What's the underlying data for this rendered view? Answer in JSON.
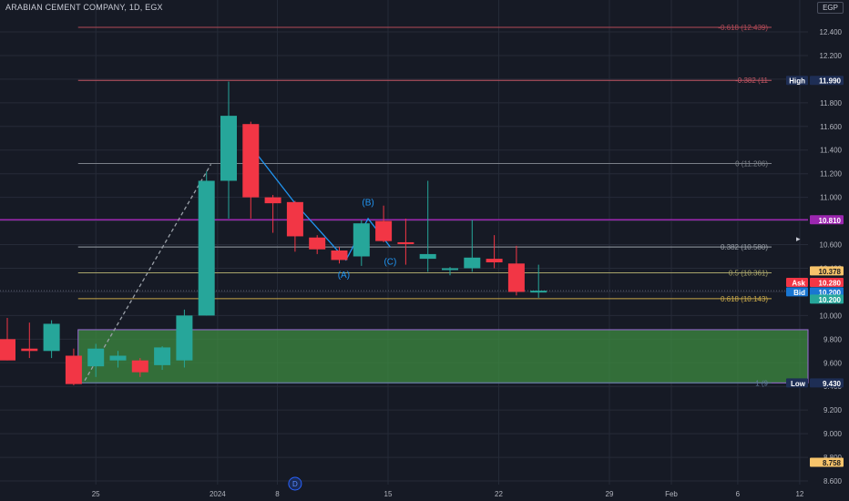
{
  "title": "ARABIAN CEMENT COMPANY, 1D, EGX",
  "currency": "EGP",
  "colors": {
    "background": "#161a25",
    "up": "#26a69a",
    "down": "#f23645",
    "axis_text": "#b2b5be",
    "grid": "#262b38",
    "zone": "#4caf50",
    "line_purple": "#9c27b0",
    "wave": "#2196f3"
  },
  "chart_data": {
    "type": "candlestick",
    "y_axis": {
      "ticks": [
        "12.400",
        "12.200",
        "12.000",
        "11.800",
        "11.600",
        "11.400",
        "11.200",
        "11.000",
        "10.800",
        "10.600",
        "10.400",
        "10.200",
        "10.000",
        "9.800",
        "9.600",
        "9.400",
        "9.200",
        "9.000",
        "8.800",
        "8.600"
      ],
      "range": [
        8.52,
        12.58
      ]
    },
    "x_axis": {
      "ticks": [
        "25",
        "2024",
        "8",
        "15",
        "22",
        "29",
        "Feb",
        "6",
        "12"
      ]
    },
    "candles": [
      {
        "o": 9.8,
        "h": 9.98,
        "l": 9.62,
        "c": 9.62
      },
      {
        "o": 9.72,
        "h": 9.94,
        "l": 9.64,
        "c": 9.7
      },
      {
        "o": 9.7,
        "h": 9.96,
        "l": 9.64,
        "c": 9.93
      },
      {
        "o": 9.66,
        "h": 9.72,
        "l": 9.41,
        "c": 9.42
      },
      {
        "o": 9.57,
        "h": 9.76,
        "l": 9.48,
        "c": 9.72
      },
      {
        "o": 9.62,
        "h": 9.7,
        "l": 9.56,
        "c": 9.66
      },
      {
        "o": 9.62,
        "h": 9.64,
        "l": 9.48,
        "c": 9.52
      },
      {
        "o": 9.58,
        "h": 9.74,
        "l": 9.54,
        "c": 9.73
      },
      {
        "o": 9.62,
        "h": 10.05,
        "l": 9.56,
        "c": 10.0
      },
      {
        "o": 10.0,
        "h": 11.22,
        "l": 10.0,
        "c": 11.14
      },
      {
        "o": 11.14,
        "h": 11.98,
        "l": 10.82,
        "c": 11.69
      },
      {
        "o": 11.62,
        "h": 11.64,
        "l": 10.82,
        "c": 11.0
      },
      {
        "o": 11.0,
        "h": 11.02,
        "l": 10.7,
        "c": 10.95
      },
      {
        "o": 10.96,
        "h": 10.97,
        "l": 10.54,
        "c": 10.67
      },
      {
        "o": 10.66,
        "h": 10.68,
        "l": 10.52,
        "c": 10.56
      },
      {
        "o": 10.55,
        "h": 10.58,
        "l": 10.44,
        "c": 10.47
      },
      {
        "o": 10.5,
        "h": 10.81,
        "l": 10.42,
        "c": 10.78
      },
      {
        "o": 10.8,
        "h": 10.93,
        "l": 10.62,
        "c": 10.63
      },
      {
        "o": 10.62,
        "h": 10.82,
        "l": 10.43,
        "c": 10.61
      },
      {
        "o": 10.48,
        "h": 11.14,
        "l": 10.37,
        "c": 10.52
      },
      {
        "o": 10.4,
        "h": 10.41,
        "l": 10.34,
        "c": 10.4
      },
      {
        "o": 10.4,
        "h": 10.81,
        "l": 10.37,
        "c": 10.49
      },
      {
        "o": 10.48,
        "h": 10.68,
        "l": 10.4,
        "c": 10.45
      },
      {
        "o": 10.44,
        "h": 10.59,
        "l": 10.17,
        "c": 10.2
      },
      {
        "o": 10.2,
        "h": 10.43,
        "l": 10.15,
        "c": 10.21
      }
    ],
    "fib_levels": [
      {
        "label": "-0.618 (12.439)",
        "value": 12.439,
        "color": "#b24a57"
      },
      {
        "label": "-0.382 (11",
        "value": 11.99,
        "color": "#c25563"
      },
      {
        "label": "0 (11.286)",
        "value": 11.286,
        "color": "#7b8088"
      },
      {
        "label": "0.382 (10.580)",
        "value": 10.58,
        "color": "#9aa0a8"
      },
      {
        "label": "0.5 (10.361)",
        "value": 10.361,
        "color": "#a8a46a"
      },
      {
        "label": "0.618 (10.143)",
        "value": 10.143,
        "color": "#c9a94a"
      },
      {
        "label": "1 (9",
        "value": 9.43,
        "color": "#5f7a9a"
      }
    ],
    "wave_labels": [
      "(A)",
      "(B)",
      "(C)"
    ],
    "marker_label": "D",
    "price_labels": [
      {
        "text": "10.810",
        "value": 10.81,
        "bg": "#9c27b0"
      },
      {
        "text": "High",
        "value": 11.99,
        "bg": "#1e2e55"
      },
      {
        "text": "11.990",
        "value": 11.99,
        "bg": "#1e2e55"
      },
      {
        "text": "10.378",
        "value": 10.378,
        "bg": "#f7c46b"
      },
      {
        "text": "Ask",
        "value": 10.28,
        "bg": "#f23645"
      },
      {
        "text": "10.280",
        "value": 10.28,
        "bg": "#f23645"
      },
      {
        "text": "Bid",
        "value": 10.2,
        "bg": "#1976d2"
      },
      {
        "text": "10.200",
        "value": 10.2,
        "bg": "#1976d2"
      },
      {
        "text": "10.200",
        "value": 10.2,
        "bg": "#26a69a"
      },
      {
        "text": "Low",
        "value": 9.43,
        "bg": "#1e2e55"
      },
      {
        "text": "9.430",
        "value": 9.43,
        "bg": "#1e2e55"
      },
      {
        "text": "8.758",
        "value": 8.758,
        "bg": "#f7c46b"
      }
    ],
    "horizontal_line": 10.81,
    "zone": {
      "top": 9.88,
      "bottom": 9.43
    }
  }
}
